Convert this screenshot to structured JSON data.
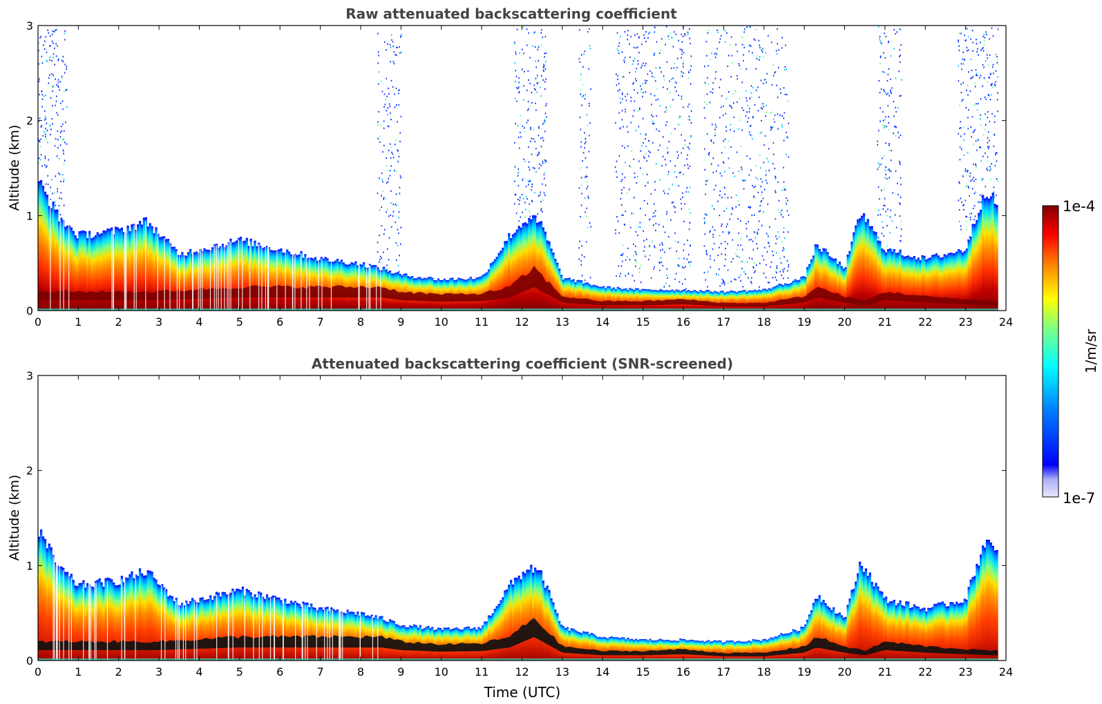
{
  "colors": {
    "background": "#ffffff",
    "axis": "#000000",
    "title": "#444444",
    "colormap": [
      "#0000a0",
      "#0000ff",
      "#0080ff",
      "#00ffff",
      "#80ff80",
      "#ffff00",
      "#ff8000",
      "#ff0000",
      "#800000"
    ],
    "faint": "#dcdcf5",
    "screened_core": "#000000"
  },
  "chart_data": [
    {
      "type": "heatmap",
      "title": "Raw attenuated backscattering coefficient",
      "xlabel": "",
      "ylabel": "Altitude (km)",
      "xlim": [
        0,
        24
      ],
      "ylim": [
        0,
        3
      ],
      "xticks": [
        "0",
        "1",
        "2",
        "3",
        "4",
        "5",
        "6",
        "7",
        "8",
        "9",
        "10",
        "11",
        "12",
        "13",
        "14",
        "15",
        "16",
        "17",
        "18",
        "19",
        "20",
        "21",
        "22",
        "23",
        "24"
      ],
      "yticks": [
        "0",
        "1",
        "2",
        "3"
      ],
      "grid": false,
      "boundary_layer_top_km": {
        "time_h": [
          0,
          0.5,
          1,
          2,
          2.7,
          3.5,
          4,
          5,
          6,
          7,
          8,
          8.5,
          9,
          10,
          11,
          11.7,
          12.2,
          12.5,
          13,
          14,
          15,
          16,
          17,
          18,
          19,
          19.3,
          20,
          20.4,
          21,
          22,
          23,
          23.5,
          23.8
        ],
        "altitude_km": [
          1.4,
          1.0,
          0.8,
          0.85,
          0.95,
          0.6,
          0.65,
          0.75,
          0.65,
          0.55,
          0.5,
          0.45,
          0.38,
          0.33,
          0.35,
          0.8,
          1.0,
          0.9,
          0.35,
          0.25,
          0.22,
          0.22,
          0.2,
          0.22,
          0.35,
          0.7,
          0.45,
          1.05,
          0.65,
          0.55,
          0.65,
          1.3,
          1.1
        ]
      },
      "aerosol_core_km": {
        "time_h": [
          0,
          1,
          3,
          5,
          7,
          8.5,
          9,
          10,
          11,
          11.7,
          12.3,
          13,
          14,
          15,
          16,
          17,
          18,
          19,
          19.3,
          20,
          20.5,
          21,
          22,
          23,
          23.8
        ],
        "altitude_km": [
          0.2,
          0.2,
          0.2,
          0.25,
          0.25,
          0.25,
          0.2,
          0.17,
          0.18,
          0.25,
          0.45,
          0.15,
          0.1,
          0.1,
          0.12,
          0.08,
          0.08,
          0.15,
          0.25,
          0.15,
          0.1,
          0.2,
          0.15,
          0.12,
          0.1
        ]
      },
      "noise_regions_h": [
        [
          0,
          0.7
        ],
        [
          8.4,
          9.0
        ],
        [
          11.8,
          12.6
        ],
        [
          13.4,
          13.7
        ],
        [
          14.3,
          16.2
        ],
        [
          16.5,
          18.6
        ],
        [
          20.8,
          21.4
        ],
        [
          22.8,
          23.8
        ]
      ]
    },
    {
      "type": "heatmap",
      "title": "Attenuated backscattering coefficient (SNR-screened)",
      "xlabel": "Time (UTC)",
      "ylabel": "Altitude (km)",
      "xlim": [
        0,
        24
      ],
      "ylim": [
        0,
        3
      ],
      "xticks": [
        "0",
        "1",
        "2",
        "3",
        "4",
        "5",
        "6",
        "7",
        "8",
        "9",
        "10",
        "11",
        "12",
        "13",
        "14",
        "15",
        "16",
        "17",
        "18",
        "19",
        "20",
        "21",
        "22",
        "23",
        "24"
      ],
      "yticks": [
        "0",
        "1",
        "2",
        "3"
      ],
      "grid": false,
      "boundary_layer_top_km": {
        "time_h": [
          0,
          0.5,
          1,
          2,
          2.7,
          3.5,
          4,
          5,
          6,
          7,
          8,
          8.5,
          9,
          10,
          11,
          11.7,
          12.2,
          12.5,
          13,
          14,
          15,
          16,
          17,
          18,
          19,
          19.3,
          20,
          20.4,
          21,
          22,
          23,
          23.5,
          23.8
        ],
        "altitude_km": [
          1.4,
          1.0,
          0.8,
          0.85,
          0.95,
          0.6,
          0.65,
          0.75,
          0.65,
          0.55,
          0.5,
          0.45,
          0.38,
          0.33,
          0.35,
          0.8,
          1.0,
          0.9,
          0.35,
          0.25,
          0.22,
          0.22,
          0.2,
          0.22,
          0.35,
          0.7,
          0.45,
          1.05,
          0.65,
          0.55,
          0.65,
          1.3,
          1.1
        ]
      },
      "aerosol_core_km": {
        "time_h": [
          0,
          1,
          3,
          5,
          7,
          8.5,
          9,
          10,
          11,
          11.7,
          12.3,
          13,
          14,
          15,
          16,
          17,
          18,
          19,
          19.3,
          20,
          20.5,
          21,
          22,
          23,
          23.8
        ],
        "altitude_km": [
          0.2,
          0.2,
          0.2,
          0.25,
          0.25,
          0.25,
          0.2,
          0.17,
          0.18,
          0.25,
          0.45,
          0.15,
          0.1,
          0.1,
          0.12,
          0.08,
          0.08,
          0.15,
          0.25,
          0.15,
          0.1,
          0.2,
          0.15,
          0.12,
          0.1
        ]
      },
      "noise_regions_h": []
    }
  ],
  "colorbar": {
    "label": "1/m/sr",
    "max_label": "1e-4",
    "min_label": "1e-7",
    "range": [
      1e-07,
      0.0001
    ],
    "scale": "log"
  }
}
